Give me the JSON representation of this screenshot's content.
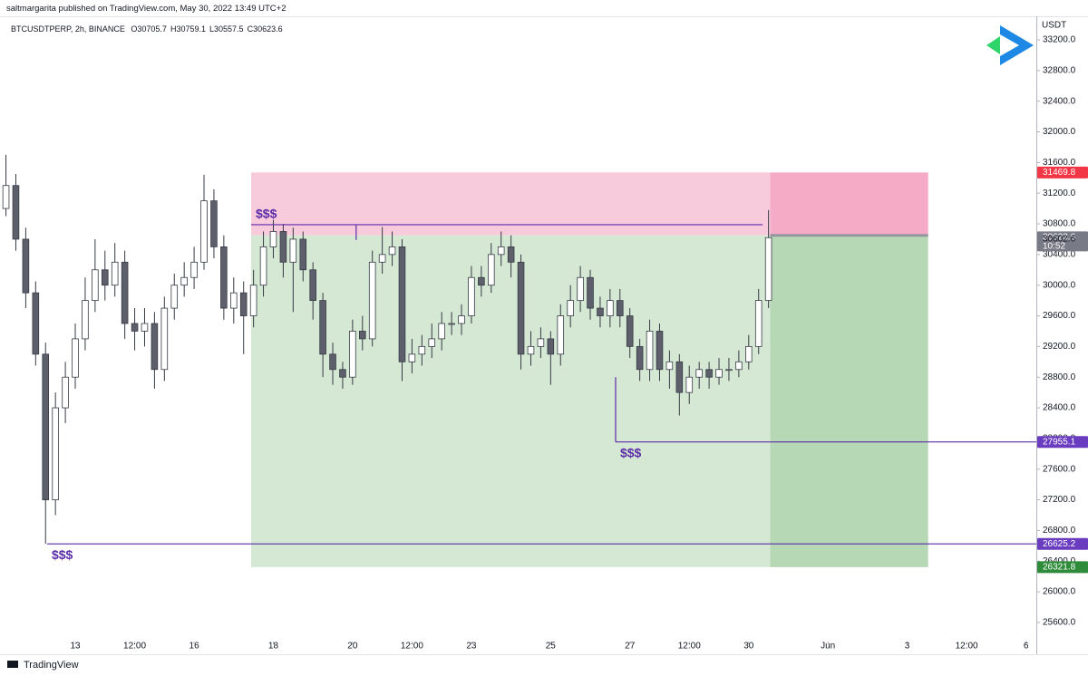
{
  "header": "saltmargarita published on TradingView.com, May 30, 2022 13:49 UTC+2",
  "footer": "TradingView",
  "chart_data": {
    "type": "candlestick",
    "symbol": "BTCUSDTPERP, 2h, BINANCE",
    "ohlc": [
      {
        "label": "O",
        "value": 30705.7
      },
      {
        "label": "H",
        "value": 30759.1
      },
      {
        "label": "L",
        "value": 30557.5
      },
      {
        "label": "C",
        "value": 30623.6
      }
    ],
    "y_label": "USDT",
    "x": [
      11.25,
      11.5,
      11.75,
      12,
      12.25,
      12.5,
      12.75,
      13,
      13.25,
      13.5,
      13.75,
      14,
      14.25,
      14.5,
      14.75,
      15,
      15.25,
      15.5,
      15.75,
      16,
      16.25,
      16.5,
      16.75,
      17,
      17.25,
      17.5,
      17.75,
      18,
      18.25,
      18.5,
      18.75,
      19,
      19.25,
      19.5,
      19.75,
      20,
      20.25,
      20.5,
      20.75,
      21,
      21.25,
      21.5,
      21.75,
      22,
      22.25,
      22.5,
      22.75,
      23,
      23.25,
      23.5,
      23.75,
      24,
      24.25,
      24.5,
      24.75,
      25,
      25.25,
      25.5,
      25.75,
      26,
      26.25,
      26.5,
      26.75,
      27,
      27.25,
      27.5,
      27.75,
      28,
      28.25,
      28.5,
      28.75,
      29,
      29.25,
      29.5,
      29.75,
      30,
      30.25,
      30.5
    ],
    "open": [
      31000,
      31300,
      30600,
      29900,
      29100,
      27200,
      28400,
      28800,
      29300,
      29800,
      30200,
      30000,
      30300,
      29500,
      29400,
      29500,
      28900,
      29700,
      30000,
      30100,
      30300,
      31100,
      30500,
      29700,
      29900,
      29600,
      30000,
      30500,
      30700,
      30300,
      30600,
      30200,
      29800,
      29100,
      28900,
      28800,
      29400,
      29300,
      30300,
      30400,
      30500,
      29000,
      29100,
      29200,
      29300,
      29500,
      29500,
      29600,
      30100,
      30000,
      30400,
      30500,
      30300,
      29100,
      29200,
      29300,
      29100,
      29600,
      29800,
      30100,
      29700,
      29600,
      29800,
      29600,
      29200,
      28900,
      29400,
      28900,
      29000,
      28600,
      28800,
      28900,
      28800,
      28900,
      28900,
      29000,
      29200,
      29800
    ],
    "high": [
      31700,
      31450,
      30750,
      30050,
      29250,
      28600,
      29000,
      29500,
      30100,
      30600,
      30450,
      30550,
      30450,
      29700,
      29700,
      29650,
      29850,
      30150,
      30300,
      30500,
      31440,
      31250,
      30650,
      30100,
      30050,
      30200,
      30700,
      30850,
      30800,
      30750,
      30700,
      30300,
      29900,
      29250,
      29000,
      29550,
      29600,
      30450,
      30759,
      30700,
      30600,
      29300,
      29350,
      29500,
      29650,
      29650,
      29750,
      30250,
      30250,
      30550,
      30700,
      30650,
      30400,
      29400,
      29450,
      29400,
      29750,
      30000,
      30250,
      30200,
      29850,
      29950,
      29950,
      29700,
      29300,
      29550,
      29500,
      29150,
      29100,
      28950,
      29000,
      29000,
      29050,
      29050,
      29150,
      29350,
      29950,
      30980
    ],
    "low": [
      30900,
      30450,
      29700,
      28950,
      26625,
      27000,
      28200,
      28650,
      29150,
      29650,
      29800,
      29850,
      29300,
      29150,
      29200,
      28650,
      28750,
      29550,
      29850,
      29950,
      30200,
      30350,
      29550,
      29500,
      29100,
      29450,
      29850,
      30350,
      30100,
      29650,
      30050,
      29550,
      28800,
      28700,
      28650,
      28700,
      29150,
      29200,
      30150,
      30250,
      28750,
      28850,
      28950,
      29050,
      29150,
      29350,
      29350,
      29500,
      29850,
      29900,
      30250,
      30100,
      28900,
      28950,
      29050,
      28700,
      28950,
      29450,
      29650,
      29550,
      29450,
      29450,
      29450,
      29050,
      28750,
      28750,
      28750,
      28650,
      28300,
      28450,
      28650,
      28650,
      28700,
      28750,
      28800,
      28900,
      29100,
      29700
    ],
    "close": [
      31300,
      30600,
      29900,
      29100,
      27200,
      28400,
      28800,
      29300,
      29800,
      30200,
      30000,
      30300,
      29500,
      29400,
      29500,
      28900,
      29700,
      30000,
      30100,
      30300,
      31100,
      30500,
      29700,
      29900,
      29600,
      30000,
      30500,
      30700,
      30300,
      30600,
      30200,
      29800,
      29100,
      28900,
      28800,
      29400,
      29300,
      30300,
      30400,
      30500,
      29000,
      29100,
      29200,
      29300,
      29500,
      29500,
      29600,
      30100,
      30000,
      30400,
      30500,
      30300,
      29100,
      29200,
      29300,
      29100,
      29600,
      29800,
      30100,
      29700,
      29600,
      29800,
      29600,
      29200,
      28900,
      29400,
      28900,
      29000,
      28600,
      28800,
      28900,
      28800,
      28900,
      28900,
      29000,
      29200,
      29800,
      30620
    ],
    "up_color": "#ffffff",
    "down_color": "#5d606b",
    "wick_color": "#363a45",
    "xlim": [
      11.1,
      37.26
    ],
    "xticks": [
      13,
      {
        "value": 14.5,
        "label": "12:00"
      },
      16,
      18,
      20,
      {
        "value": 21.5,
        "label": "12:00"
      },
      23,
      25,
      27,
      {
        "value": 28.5,
        "label": "12:00"
      },
      30,
      {
        "value": 32,
        "label": "Jun"
      },
      {
        "value": 34,
        "label": "3"
      },
      {
        "value": 35.5,
        "label": "12:00"
      },
      {
        "value": 37,
        "label": "6"
      }
    ],
    "ylim": [
      25351,
      33507
    ],
    "yticks": [
      {
        "value": 25600,
        "label": "25600.0"
      },
      {
        "value": 26000,
        "label": "26000.0"
      },
      {
        "value": 26400,
        "label": "26400.0"
      },
      {
        "value": 26800,
        "label": "26800.0"
      },
      {
        "value": 27200,
        "label": "27200.0"
      },
      {
        "value": 27600,
        "label": "27600.0"
      },
      {
        "value": 28000,
        "label": "28000.0"
      },
      {
        "value": 28400,
        "label": "28400.0"
      },
      {
        "value": 28800,
        "label": "28800.0"
      },
      {
        "value": 29200,
        "label": "29200.0"
      },
      {
        "value": 29600,
        "label": "29600.0"
      },
      {
        "value": 30000,
        "label": "30000.0"
      },
      {
        "value": 30400,
        "label": "30400.0"
      },
      {
        "value": 30800,
        "label": "30800.0"
      },
      {
        "value": 31200,
        "label": "31200.0"
      },
      {
        "value": 31600,
        "label": "31600.0"
      },
      {
        "value": 32000,
        "label": "32000.0"
      },
      {
        "value": 32400,
        "label": "32400.0"
      },
      {
        "value": 32800,
        "label": "32800.0"
      },
      {
        "value": 33200,
        "label": "33200.0"
      }
    ],
    "grid": false,
    "position": {
      "x": [
        17.44,
        30.54,
        34.53
      ],
      "stop": 31469.8,
      "entry": 30650,
      "target": 26321.8,
      "stop_color": "#f7cbdb",
      "stop_color_active": "#f5abc6",
      "target_color": "#d5e8d4",
      "target_color_active": "#b6d8b5"
    },
    "levels": [
      {
        "value": 30789,
        "x_start": 17.44,
        "x_end": 30.35,
        "anchor_x": 20.09,
        "anchor": 30590,
        "label": "$$$"
      },
      {
        "value": 27955.1,
        "x_start": 26.64,
        "anchor_x": 26.64,
        "anchor": 28800,
        "label": "$$$"
      },
      {
        "value": 26625.2,
        "x_start": 12.29,
        "label": "$$$"
      }
    ],
    "level_color": "#5b2ca8",
    "price_labels": [
      {
        "value": 31469.8,
        "color": "#f23645"
      },
      {
        "value": 30623.6,
        "color": "#787b86",
        "note": "10:52"
      },
      {
        "value": 30602.6
      },
      {
        "value": 27955.1,
        "color": "#6a3cbf"
      },
      {
        "value": 26625.2,
        "color": "#6a3cbf"
      },
      {
        "value": 26321.8,
        "color": "#2e8b3a"
      }
    ]
  }
}
